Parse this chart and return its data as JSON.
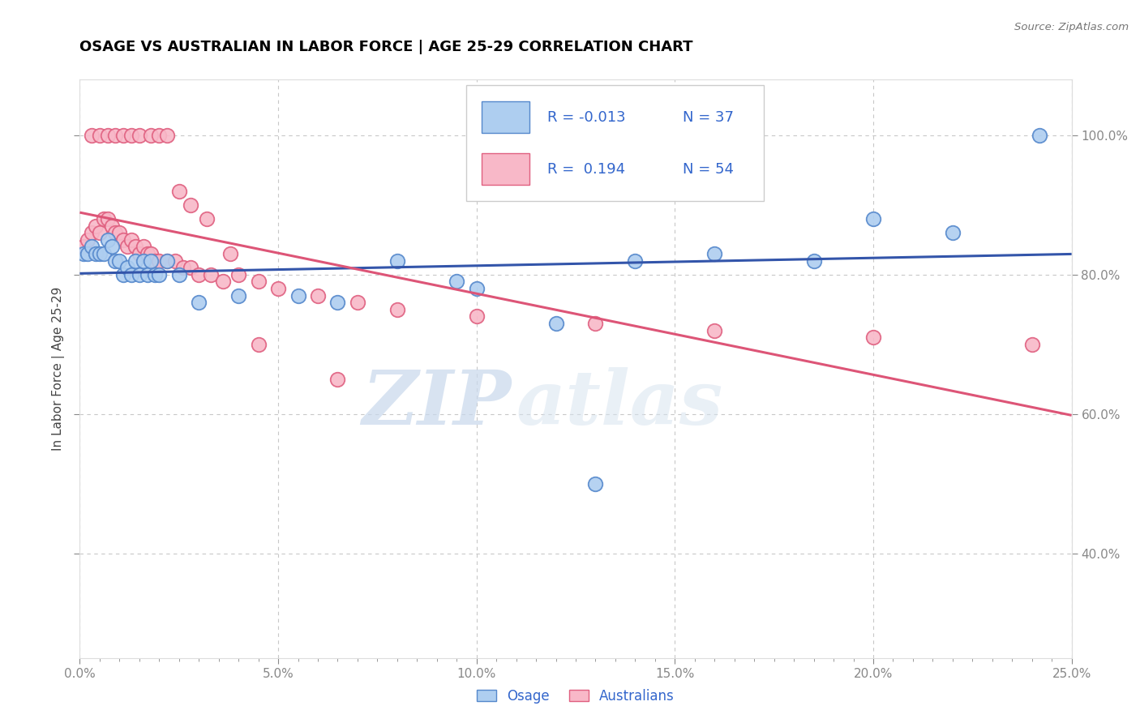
{
  "title": "OSAGE VS AUSTRALIAN IN LABOR FORCE | AGE 25-29 CORRELATION CHART",
  "source_text": "Source: ZipAtlas.com",
  "ylabel": "In Labor Force | Age 25-29",
  "xlim": [
    0.0,
    0.25
  ],
  "ylim": [
    0.25,
    1.08
  ],
  "xtick_labels": [
    "0.0%",
    "",
    "",
    "",
    "",
    "",
    "",
    "",
    "",
    "",
    "5.0%",
    "",
    "",
    "",
    "",
    "",
    "",
    "",
    "",
    "",
    "10.0%",
    "",
    "",
    "",
    "",
    "",
    "",
    "",
    "",
    "",
    "15.0%",
    "",
    "",
    "",
    "",
    "",
    "",
    "",
    "",
    "",
    "20.0%",
    "",
    "",
    "",
    "",
    "",
    "",
    "",
    "",
    "",
    "25.0%"
  ],
  "xtick_vals": [
    0.0,
    0.005,
    0.01,
    0.015,
    0.02,
    0.025,
    0.03,
    0.035,
    0.04,
    0.045,
    0.05,
    0.055,
    0.06,
    0.065,
    0.07,
    0.075,
    0.08,
    0.085,
    0.09,
    0.095,
    0.1,
    0.105,
    0.11,
    0.115,
    0.12,
    0.125,
    0.13,
    0.135,
    0.14,
    0.145,
    0.15,
    0.155,
    0.16,
    0.165,
    0.17,
    0.175,
    0.18,
    0.185,
    0.19,
    0.195,
    0.2,
    0.205,
    0.21,
    0.215,
    0.22,
    0.225,
    0.23,
    0.235,
    0.24,
    0.245,
    0.25
  ],
  "xtick_major_labels": [
    "0.0%",
    "5.0%",
    "10.0%",
    "15.0%",
    "20.0%",
    "25.0%"
  ],
  "xtick_major_vals": [
    0.0,
    0.05,
    0.1,
    0.15,
    0.2,
    0.25
  ],
  "ytick_labels": [
    "40.0%",
    "60.0%",
    "80.0%",
    "100.0%"
  ],
  "ytick_vals": [
    0.4,
    0.6,
    0.8,
    1.0
  ],
  "grid_color": "#c8c8c8",
  "watermark_zip": "ZIP",
  "watermark_atlas": "atlas",
  "legend_R_osage": "-0.013",
  "legend_N_osage": "37",
  "legend_R_aus": "0.194",
  "legend_N_aus": "54",
  "osage_fill_color": "#aecef0",
  "aus_fill_color": "#f8b8c8",
  "osage_edge_color": "#5588cc",
  "aus_edge_color": "#e06080",
  "osage_line_color": "#3355aa",
  "aus_line_color": "#dd5577",
  "osage_x": [
    0.001,
    0.002,
    0.003,
    0.004,
    0.005,
    0.006,
    0.007,
    0.008,
    0.009,
    0.01,
    0.011,
    0.012,
    0.013,
    0.014,
    0.015,
    0.016,
    0.017,
    0.018,
    0.019,
    0.02,
    0.022,
    0.025,
    0.03,
    0.04,
    0.055,
    0.065,
    0.08,
    0.095,
    0.12,
    0.14,
    0.16,
    0.185,
    0.2,
    0.22,
    0.242,
    0.1,
    0.13
  ],
  "osage_y": [
    0.83,
    0.83,
    0.84,
    0.83,
    0.83,
    0.83,
    0.85,
    0.84,
    0.82,
    0.82,
    0.8,
    0.81,
    0.8,
    0.82,
    0.8,
    0.82,
    0.8,
    0.82,
    0.8,
    0.8,
    0.82,
    0.8,
    0.76,
    0.77,
    0.77,
    0.76,
    0.82,
    0.79,
    0.73,
    0.82,
    0.83,
    0.82,
    0.88,
    0.86,
    1.0,
    0.78,
    0.5
  ],
  "aus_x": [
    0.001,
    0.002,
    0.003,
    0.004,
    0.005,
    0.006,
    0.007,
    0.008,
    0.009,
    0.01,
    0.011,
    0.012,
    0.013,
    0.014,
    0.015,
    0.016,
    0.017,
    0.018,
    0.019,
    0.02,
    0.022,
    0.024,
    0.026,
    0.028,
    0.03,
    0.033,
    0.036,
    0.04,
    0.045,
    0.05,
    0.06,
    0.07,
    0.08,
    0.1,
    0.13,
    0.16,
    0.2,
    0.24,
    0.003,
    0.005,
    0.007,
    0.009,
    0.011,
    0.013,
    0.015,
    0.018,
    0.02,
    0.022,
    0.025,
    0.028,
    0.032,
    0.038,
    0.045,
    0.065
  ],
  "aus_y": [
    0.84,
    0.85,
    0.86,
    0.87,
    0.86,
    0.88,
    0.88,
    0.87,
    0.86,
    0.86,
    0.85,
    0.84,
    0.85,
    0.84,
    0.83,
    0.84,
    0.83,
    0.83,
    0.82,
    0.82,
    0.82,
    0.82,
    0.81,
    0.81,
    0.8,
    0.8,
    0.79,
    0.8,
    0.79,
    0.78,
    0.77,
    0.76,
    0.75,
    0.74,
    0.73,
    0.72,
    0.71,
    0.7,
    1.0,
    1.0,
    1.0,
    1.0,
    1.0,
    1.0,
    1.0,
    1.0,
    1.0,
    1.0,
    0.92,
    0.9,
    0.88,
    0.83,
    0.7,
    0.65
  ]
}
